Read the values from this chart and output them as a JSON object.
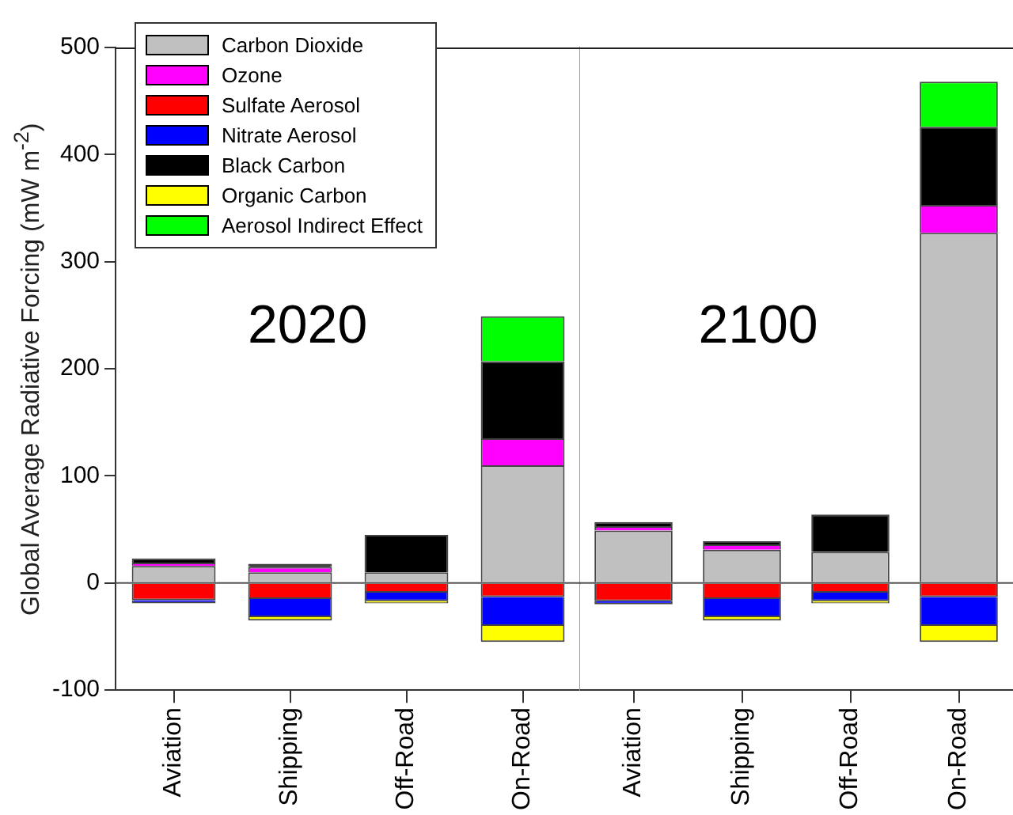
{
  "chart_data": [
    {
      "type": "bar",
      "stacked": true,
      "ylabel": "Global Average Radiative Forcing (mW m$^{-2}$)",
      "categories": [
        "Aviation",
        "Shipping",
        "Off-Road",
        "On-Road"
      ],
      "series": [
        {
          "name": "Carbon Dioxide",
          "color": "#c0c0c0",
          "values": [
            16,
            10,
            10,
            110
          ]
        },
        {
          "name": "Ozone",
          "color": "#ff00ff",
          "values": [
            3,
            5,
            0,
            25
          ]
        },
        {
          "name": "Sulfate Aerosol",
          "color": "#ff0000",
          "values": [
            -16,
            -15,
            -9,
            -13
          ]
        },
        {
          "name": "Nitrate Aerosol",
          "color": "#0000ff",
          "values": [
            -3,
            -17,
            -8,
            -27
          ]
        },
        {
          "name": "Black Carbon",
          "color": "#000000",
          "values": [
            4,
            3,
            35,
            72
          ]
        },
        {
          "name": "Organic Carbon",
          "color": "#ffff00",
          "values": [
            0,
            -3,
            -2,
            -15
          ]
        },
        {
          "name": "Aerosol Indirect Effect",
          "color": "#00ff00",
          "values": [
            0,
            0,
            0,
            42
          ]
        }
      ],
      "ylim": [
        -100,
        500
      ],
      "yticks": [
        -100,
        0,
        100,
        200,
        300,
        400,
        500
      ],
      "ref_lines": [
        {
          "axis": "y",
          "value": 0,
          "color": "#555555"
        }
      ],
      "annotations": [
        "2020"
      ],
      "legend": "top left"
    },
    {
      "type": "bar",
      "stacked": true,
      "categories": [
        "Aviation",
        "Shipping",
        "Off-Road",
        "On-Road"
      ],
      "series": [
        {
          "color": "#c0c0c0",
          "values": [
            49,
            31,
            29,
            327
          ]
        },
        {
          "color": "#ff00ff",
          "values": [
            4,
            5,
            0,
            26
          ]
        },
        {
          "color": "#ff0000",
          "values": [
            -17,
            -15,
            -9,
            -13
          ]
        },
        {
          "color": "#0000ff",
          "values": [
            -3,
            -17,
            -8,
            -27
          ]
        },
        {
          "color": "#000000",
          "values": [
            4,
            3,
            35,
            73
          ]
        },
        {
          "color": "#ffff00",
          "values": [
            0,
            -3,
            -2,
            -15
          ]
        },
        {
          "color": "#00ff00",
          "values": [
            0,
            0,
            0,
            42
          ]
        }
      ],
      "ylim": [
        -100,
        500
      ],
      "yticks": [
        -100,
        0,
        100,
        200,
        300,
        400,
        500
      ],
      "tick_labels": "x",
      "ref_lines": [
        {
          "axis": "y",
          "value": 0,
          "color": "#555555"
        }
      ],
      "annotations": [
        "2100"
      ]
    }
  ]
}
